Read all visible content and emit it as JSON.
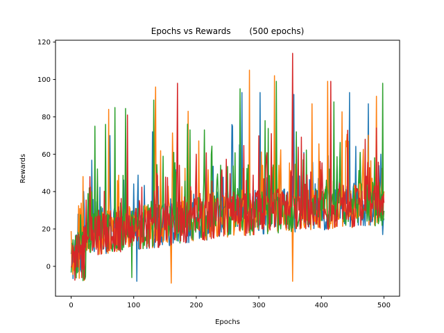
{
  "chart_data": {
    "type": "line",
    "title": "Epochs vs Rewards       (500 epochs)",
    "xlabel": "Epochs",
    "ylabel": "Rewards",
    "xlim": [
      -25,
      525
    ],
    "ylim": [
      -16,
      121
    ],
    "xticks": [
      0,
      100,
      200,
      300,
      400,
      500
    ],
    "yticks": [
      0,
      20,
      40,
      60,
      80,
      100,
      120
    ],
    "grid": false,
    "legend": "none",
    "colors": [
      "#1f77b4",
      "#ff7f0e",
      "#2ca02c",
      "#d62728"
    ],
    "series": [
      {
        "color": "#1f77b4",
        "seed": 11,
        "peaks": [
          [
            62,
            70
          ],
          [
            105,
            -8
          ],
          [
            130,
            72
          ],
          [
            258,
            75
          ],
          [
            273,
            93
          ],
          [
            302,
            93
          ],
          [
            356,
            92
          ],
          [
            395,
            47
          ],
          [
            445,
            93
          ],
          [
            475,
            87
          ],
          [
            495,
            60
          ],
          [
            498,
            17
          ]
        ]
      },
      {
        "color": "#ff7f0e",
        "seed": 23,
        "peaks": [
          [
            60,
            84
          ],
          [
            135,
            96
          ],
          [
            160,
            -9
          ],
          [
            187,
            83
          ],
          [
            285,
            105
          ],
          [
            325,
            102
          ],
          [
            354,
            -8
          ],
          [
            385,
            87
          ],
          [
            410,
            99
          ],
          [
            440,
            64
          ],
          [
            488,
            91
          ],
          [
            493,
            36
          ]
        ]
      },
      {
        "color": "#2ca02c",
        "seed": 37,
        "peaks": [
          [
            38,
            75
          ],
          [
            55,
            76
          ],
          [
            70,
            85
          ],
          [
            97,
            -6
          ],
          [
            132,
            89
          ],
          [
            190,
            73
          ],
          [
            270,
            95
          ],
          [
            310,
            78
          ],
          [
            328,
            99
          ],
          [
            360,
            72
          ],
          [
            420,
            88
          ],
          [
            462,
            61
          ],
          [
            490,
            36
          ],
          [
            498,
            98
          ]
        ]
      },
      {
        "color": "#d62728",
        "seed": 53,
        "peaks": [
          [
            30,
            48
          ],
          [
            90,
            81
          ],
          [
            170,
            98
          ],
          [
            200,
            60
          ],
          [
            320,
            71
          ],
          [
            354,
            114
          ],
          [
            415,
            99
          ],
          [
            470,
            68
          ],
          [
            500,
            34
          ]
        ]
      }
    ]
  }
}
